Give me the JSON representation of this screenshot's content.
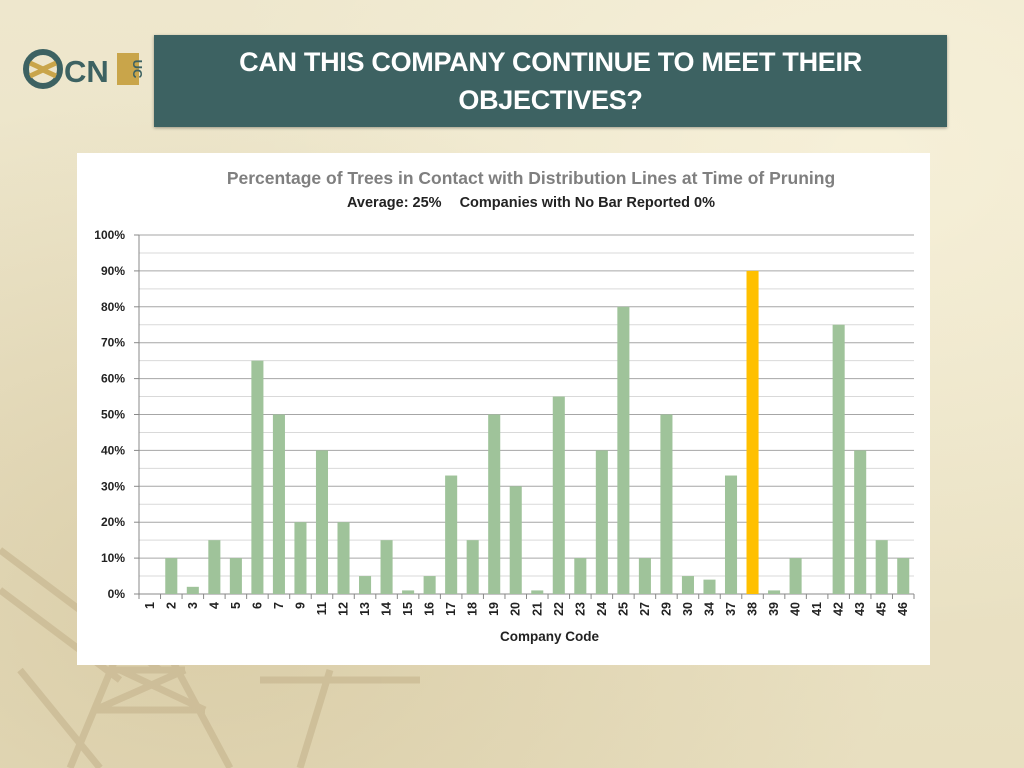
{
  "slide": {
    "title": "CAN THIS COMPANY CONTINUE TO MEET THEIR OBJECTIVES?",
    "logo_text": "CN",
    "logo_text_vertical": "UC"
  },
  "colors": {
    "title_bg": "#3d6262",
    "bar": "#9fc39a",
    "bar_highlight": "#ffc000",
    "grid": "#a6a6a6"
  },
  "chart_data": {
    "type": "bar",
    "title": "Percentage of Trees in Contact with Distribution Lines at Time of Pruning",
    "subtitle_parts": [
      "Average: 25%",
      "Companies with  No Bar Reported 0%"
    ],
    "xlabel": "Company Code",
    "ylabel": "",
    "ylim": [
      0,
      100
    ],
    "y_ticks": [
      "0%",
      "10%",
      "20%",
      "30%",
      "40%",
      "50%",
      "60%",
      "70%",
      "80%",
      "90%",
      "100%"
    ],
    "grid": true,
    "categories": [
      "1",
      "2",
      "3",
      "4",
      "5",
      "6",
      "7",
      "9",
      "11",
      "12",
      "13",
      "14",
      "15",
      "16",
      "17",
      "18",
      "19",
      "20",
      "21",
      "22",
      "23",
      "24",
      "25",
      "27",
      "29",
      "30",
      "34",
      "37",
      "38",
      "39",
      "40",
      "41",
      "42",
      "43",
      "45",
      "46"
    ],
    "values": [
      0,
      10,
      2,
      15,
      10,
      65,
      50,
      20,
      40,
      20,
      5,
      15,
      1,
      5,
      33,
      15,
      50,
      30,
      1,
      55,
      10,
      40,
      80,
      10,
      50,
      5,
      4,
      33,
      90,
      1,
      10,
      0,
      75,
      40,
      15,
      10
    ],
    "highlight_category": "38"
  }
}
